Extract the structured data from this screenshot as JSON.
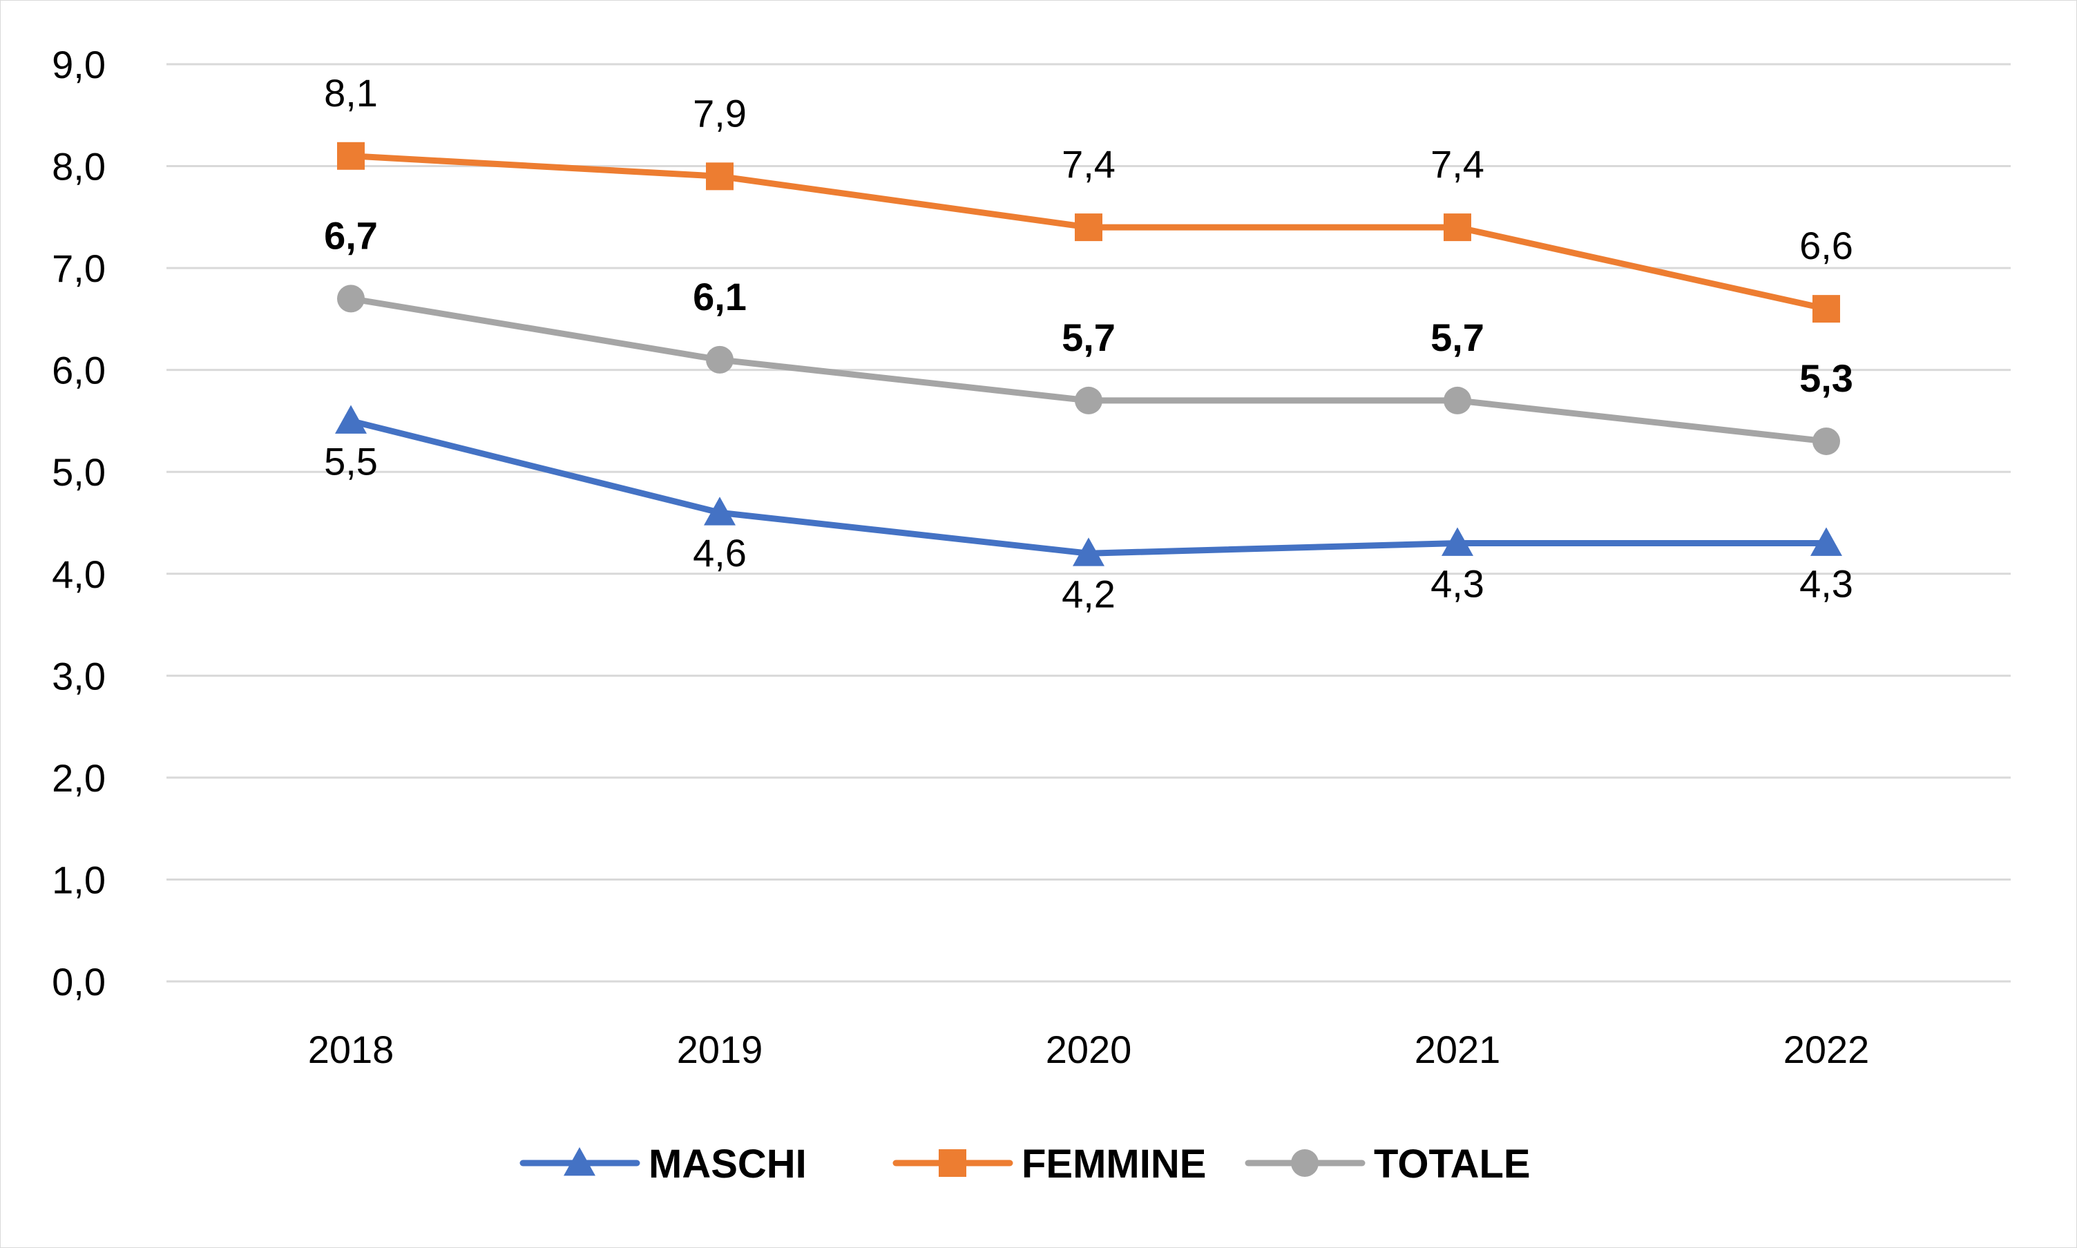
{
  "chart_data": {
    "type": "line",
    "title": "",
    "xlabel": "",
    "ylabel": "",
    "ylim": [
      0,
      9
    ],
    "y_ticks": [
      "0,0",
      "1,0",
      "2,0",
      "3,0",
      "4,0",
      "5,0",
      "6,0",
      "7,0",
      "8,0",
      "9,0"
    ],
    "categories": [
      "2018",
      "2019",
      "2020",
      "2021",
      "2022"
    ],
    "grid": "horizontal",
    "legend_position": "bottom",
    "series": [
      {
        "name": "MASCHI",
        "color": "#4472C4",
        "marker": "triangle",
        "values": [
          5.5,
          4.6,
          4.2,
          4.3,
          4.3
        ],
        "labels": [
          "5,5",
          "4,6",
          "4,2",
          "4,3",
          "4,3"
        ],
        "label_position": "below",
        "label_bold": false
      },
      {
        "name": "FEMMINE",
        "color": "#ED7D31",
        "marker": "square",
        "values": [
          8.1,
          7.9,
          7.4,
          7.4,
          6.6
        ],
        "labels": [
          "8,1",
          "7,9",
          "7,4",
          "7,4",
          "6,6"
        ],
        "label_position": "above",
        "label_bold": false
      },
      {
        "name": "TOTALE",
        "color": "#A5A5A5",
        "marker": "circle",
        "values": [
          6.7,
          6.1,
          5.7,
          5.7,
          5.3
        ],
        "labels": [
          "6,7",
          "6,1",
          "5,7",
          "5,7",
          "5,3"
        ],
        "label_position": "above",
        "label_bold": true
      }
    ]
  }
}
